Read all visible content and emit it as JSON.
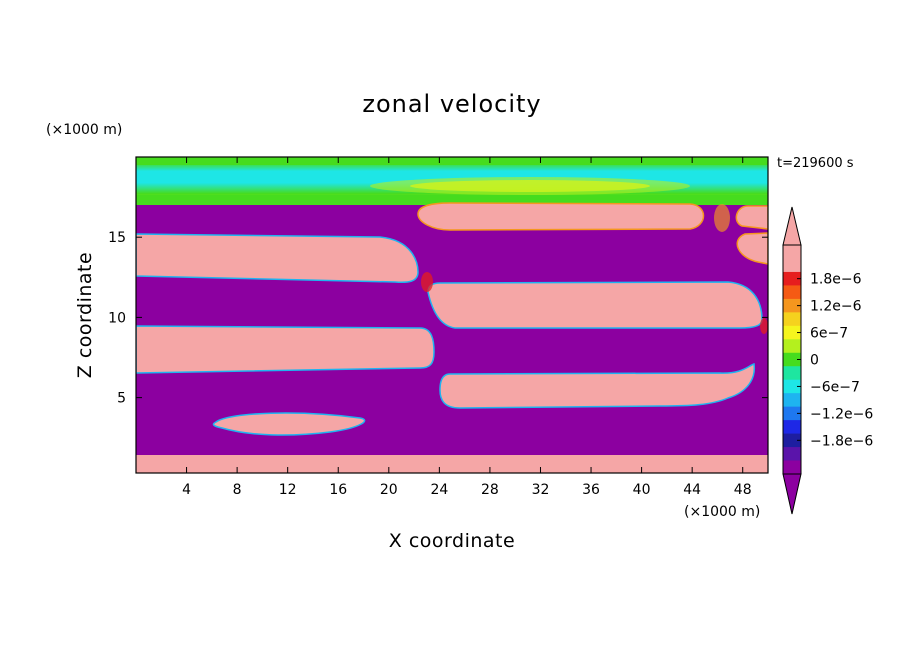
{
  "chart_data": {
    "type": "heatmap",
    "title": "zonal velocity",
    "xlabel": "X coordinate",
    "ylabel": "Z coordinate",
    "x_unit": "(×1000 m)",
    "y_unit": "(×1000 m)",
    "time_label": "t=219600 s",
    "xlim": [
      0,
      50
    ],
    "ylim": [
      0.3,
      20
    ],
    "x_ticks": [
      4,
      8,
      12,
      16,
      20,
      24,
      28,
      32,
      36,
      40,
      44,
      48
    ],
    "y_ticks": [
      5,
      10,
      15
    ],
    "grid": false,
    "colorbar": {
      "ticks": [
        {
          "value": 1.8e-06,
          "label": "1.8e−6"
        },
        {
          "value": 1.2e-06,
          "label": "1.2e−6"
        },
        {
          "value": 6e-07,
          "label": "6e−7"
        },
        {
          "value": 0,
          "label": "0"
        },
        {
          "value": -6e-07,
          "label": "−6e−7"
        },
        {
          "value": -1.2e-06,
          "label": "−1.2e−6"
        },
        {
          "value": -1.8e-06,
          "label": "−1.8e−6"
        }
      ],
      "levels": [
        {
          "value": 2.4e-06,
          "color": "#f5a6a6"
        },
        {
          "value": 2.1e-06,
          "color": "#f5a6a6"
        },
        {
          "value": 1.8e-06,
          "color": "#e61e1e"
        },
        {
          "value": 1.5e-06,
          "color": "#f55a14"
        },
        {
          "value": 1.2e-06,
          "color": "#f5961e"
        },
        {
          "value": 9e-07,
          "color": "#f5d21e"
        },
        {
          "value": 6e-07,
          "color": "#f5f51e"
        },
        {
          "value": 3e-07,
          "color": "#b4f01e"
        },
        {
          "value": 0,
          "color": "#46dc1e"
        },
        {
          "value": -3e-07,
          "color": "#1ee6a0"
        },
        {
          "value": -6e-07,
          "color": "#1ee6e6"
        },
        {
          "value": -9e-07,
          "color": "#1eb4f0"
        },
        {
          "value": -1.2e-06,
          "color": "#1e78f0"
        },
        {
          "value": -1.5e-06,
          "color": "#1e28e6"
        },
        {
          "value": -1.8e-06,
          "color": "#1e1ea0"
        },
        {
          "value": -2.1e-06,
          "color": "#5a14aa"
        },
        {
          "value": -2.4e-06,
          "color": "#8c00a0"
        }
      ],
      "over_color": "#f5a6a6",
      "under_color": "#8c00a0"
    },
    "regions": [
      {
        "sign": "negative",
        "color": "#8c00a0"
      },
      {
        "sign": "positive",
        "color": "#f5a6a6"
      }
    ]
  }
}
